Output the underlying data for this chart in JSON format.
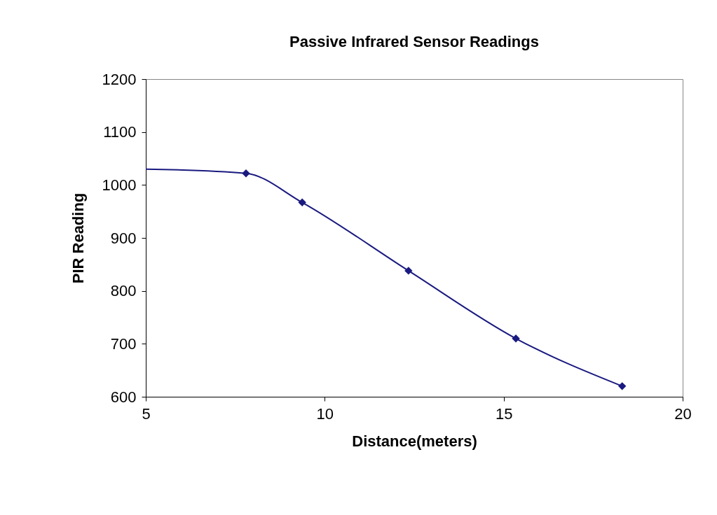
{
  "chart_data": {
    "type": "line",
    "title": "Passive Infrared Sensor Readings",
    "xlabel": "Distance(meters)",
    "ylabel": "PIR Reading",
    "xlim": [
      5,
      20
    ],
    "xticks": [
      5,
      10,
      15,
      20
    ],
    "ylim": [
      600,
      1200
    ],
    "yticks": [
      600,
      700,
      800,
      900,
      1000,
      1100,
      1200
    ],
    "grid": false,
    "marker": "diamond",
    "series": [
      {
        "marker": "none",
        "color": "#1a1a80",
        "x": [
          5,
          7.8,
          9.37,
          12.34,
          15.34,
          18.31
        ],
        "values": [
          1030,
          1022,
          967,
          838,
          710,
          620
        ]
      },
      {
        "type": "scatter",
        "color": "#1a1a80",
        "x": [
          7.8,
          9.37,
          12.34,
          15.34,
          18.31
        ],
        "values": [
          1022,
          967,
          838,
          710,
          620
        ]
      }
    ]
  }
}
